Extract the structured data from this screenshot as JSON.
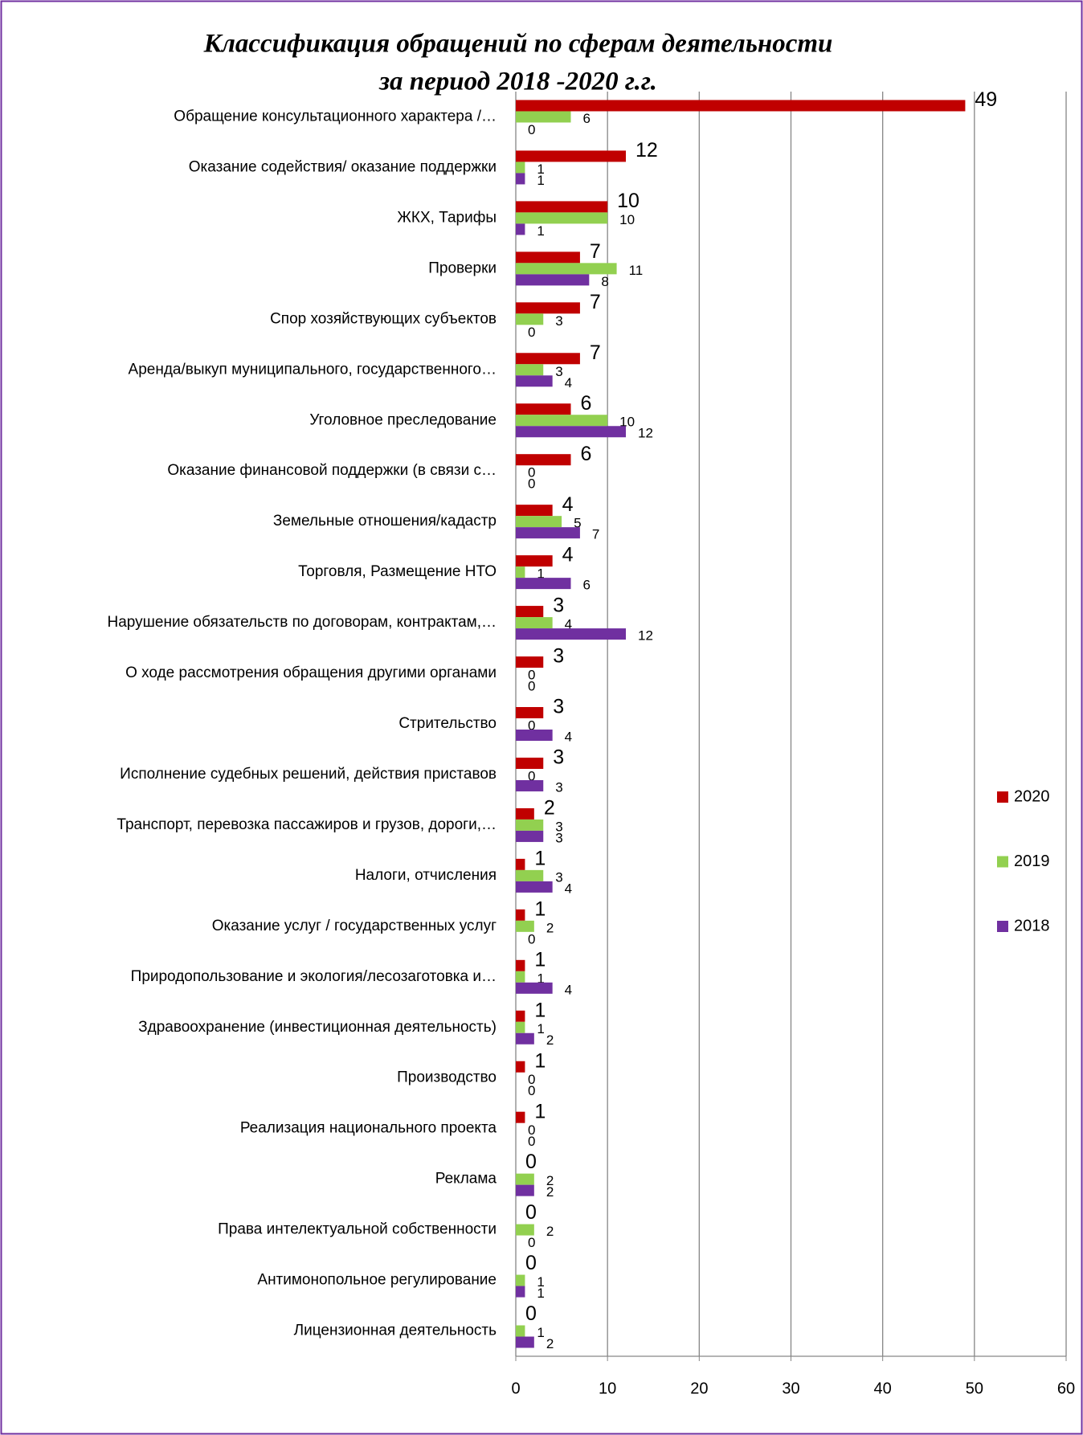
{
  "chart_data": {
    "type": "bar",
    "orientation": "horizontal",
    "title": [
      "Классификация обращений по сферам деятельности",
      "за период 2018 -2020 г.г."
    ],
    "categories": [
      "Обращение консультационного характера /…",
      "Оказание содействия/ оказание поддержки",
      "ЖКХ, Тарифы",
      "Проверки",
      "Спор хозяйствующих субъектов",
      "Аренда/выкуп муниципального, государственного…",
      "Уголовное преследование",
      "Оказание финансовой поддержки (в связи с…",
      "Земельные отношения/кадастр",
      "Торговля, Размещение НТО",
      "Нарушение обязательств по договорам, контрактам,…",
      "О ходе рассмотрения обращения другими органами",
      "Стрительство",
      "Исполнение судебных решений, действия приставов",
      "Транспорт, перевозка пассажиров и грузов, дороги,…",
      "Налоги, отчисления",
      "Оказание услуг / государственных услуг",
      "Природопользование и экология/лесозаготовка и…",
      "Здравоохранение (инвестиционная деятельность)",
      "Производство",
      "Реализация национального проекта",
      "Реклама",
      "Права интелектуальной собственности",
      "Антимонопольное регулирование",
      "Лицензионная деятельность"
    ],
    "series": [
      {
        "name": "2020",
        "color": "#c00000",
        "values": [
          49,
          12,
          10,
          7,
          7,
          7,
          6,
          6,
          4,
          4,
          3,
          3,
          3,
          3,
          2,
          1,
          1,
          1,
          1,
          1,
          1,
          0,
          0,
          0,
          0
        ]
      },
      {
        "name": "2019",
        "color": "#92d050",
        "values": [
          6,
          1,
          10,
          11,
          3,
          3,
          10,
          0,
          5,
          1,
          4,
          0,
          0,
          0,
          3,
          3,
          2,
          1,
          1,
          0,
          0,
          2,
          2,
          1,
          1
        ]
      },
      {
        "name": "2018",
        "color": "#7030a0",
        "values": [
          0,
          1,
          1,
          8,
          0,
          4,
          12,
          0,
          7,
          6,
          12,
          0,
          4,
          3,
          3,
          4,
          0,
          4,
          2,
          0,
          0,
          2,
          0,
          1,
          2
        ]
      }
    ],
    "xlim": [
      0,
      60
    ],
    "xticks": [
      0,
      10,
      20,
      30,
      40,
      50,
      60
    ],
    "grid": true,
    "legend": "right"
  }
}
